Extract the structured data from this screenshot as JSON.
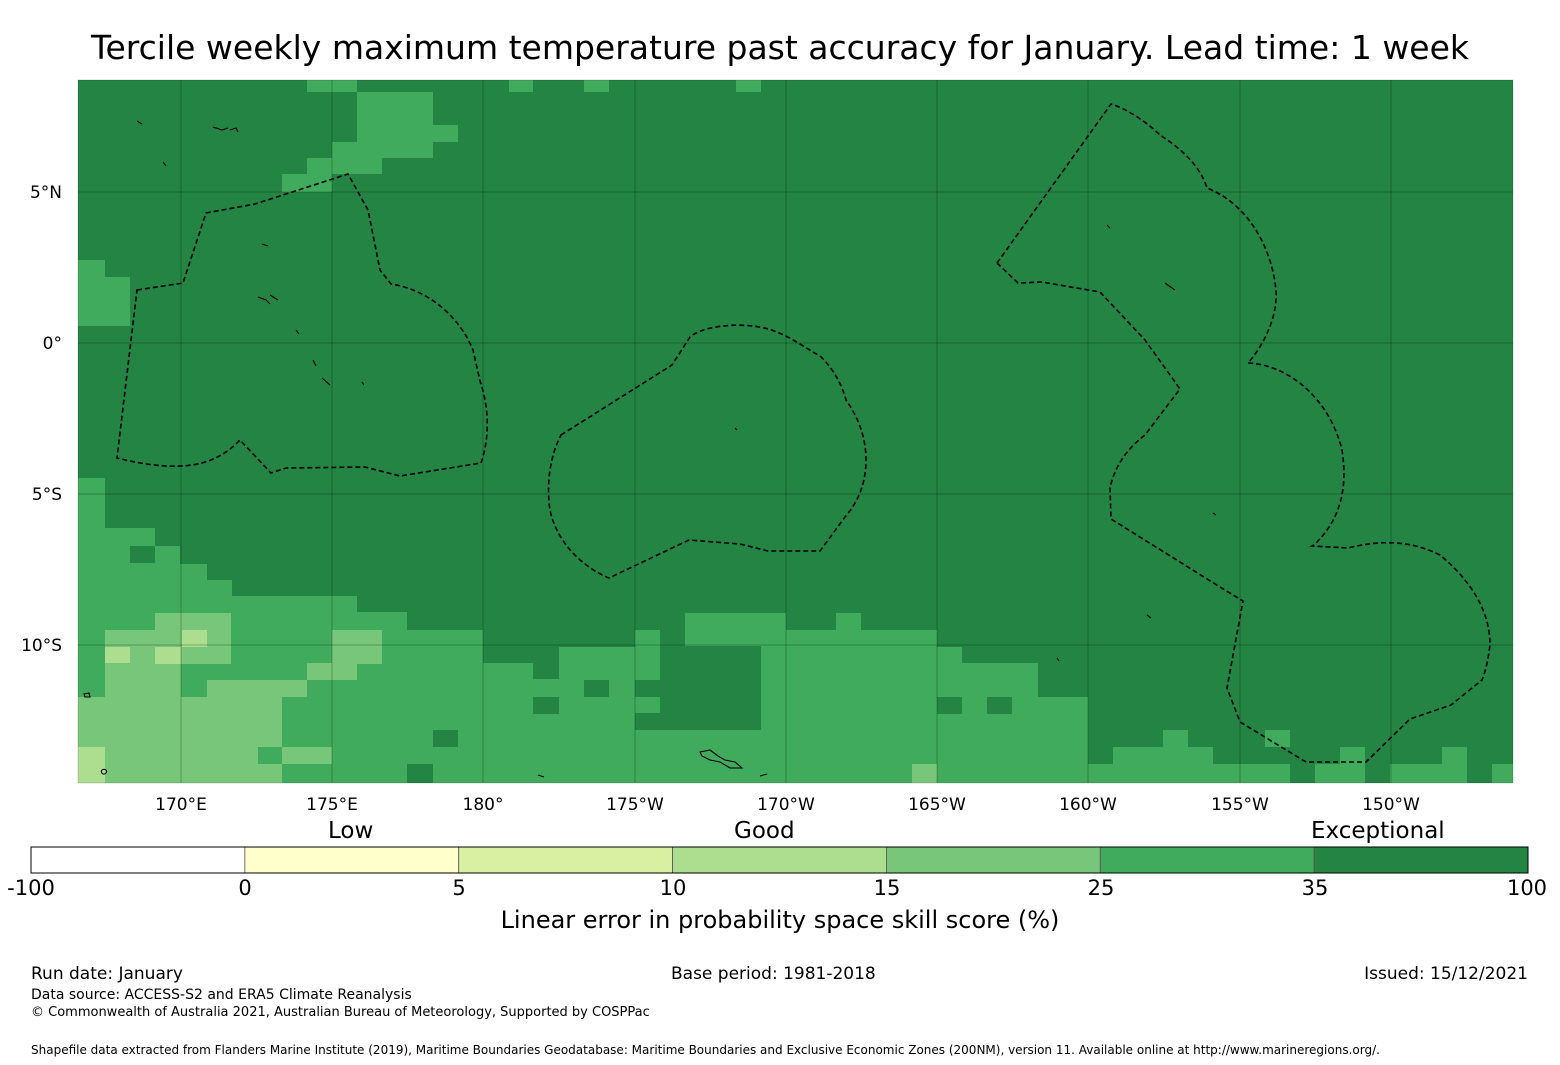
{
  "title": "Tercile weekly maximum temperature past accuracy for January. Lead time: 1 week",
  "map": {
    "lat_labels": [
      "5°N",
      "0°",
      "5°S",
      "10°S"
    ],
    "lon_labels": [
      "170°E",
      "175°E",
      "180°",
      "175°W",
      "170°W",
      "165°W",
      "160°W",
      "155°W",
      "150°W"
    ],
    "colors": {
      "exceptional": "#238443",
      "high": "#41ab5d",
      "mid": "#78c679",
      "low": "#addd8e",
      "verylow": "#d9f0a3",
      "minimal": "#ffffcc",
      "negative": "#ffffff"
    }
  },
  "colorbar": {
    "category_labels": [
      "Low",
      "Good",
      "Exceptional"
    ],
    "tick_labels": [
      "-100",
      "0",
      "5",
      "10",
      "15",
      "25",
      "35",
      "100"
    ],
    "title": "Linear error in probability space skill score (%)"
  },
  "footer": {
    "run_date": "Run date: January",
    "base_period": "Base period: 1981-2018",
    "issued": "Issued: 15/12/2021",
    "data_source": "Data source: ACCESS-S2 and ERA5 Climate Reanalysis",
    "copyright": "© Commonwealth of Australia 2021, Australian Bureau of Meteorology, Supported by COSPPac",
    "shapefile": "Shapefile data extracted from Flanders Marine Institute (2019), Maritime Boundaries Geodatabase: Maritime Boundaries and Exclusive Economic Zones (200NM), version 11. Available online at http://www.marineregions.org/."
  }
}
